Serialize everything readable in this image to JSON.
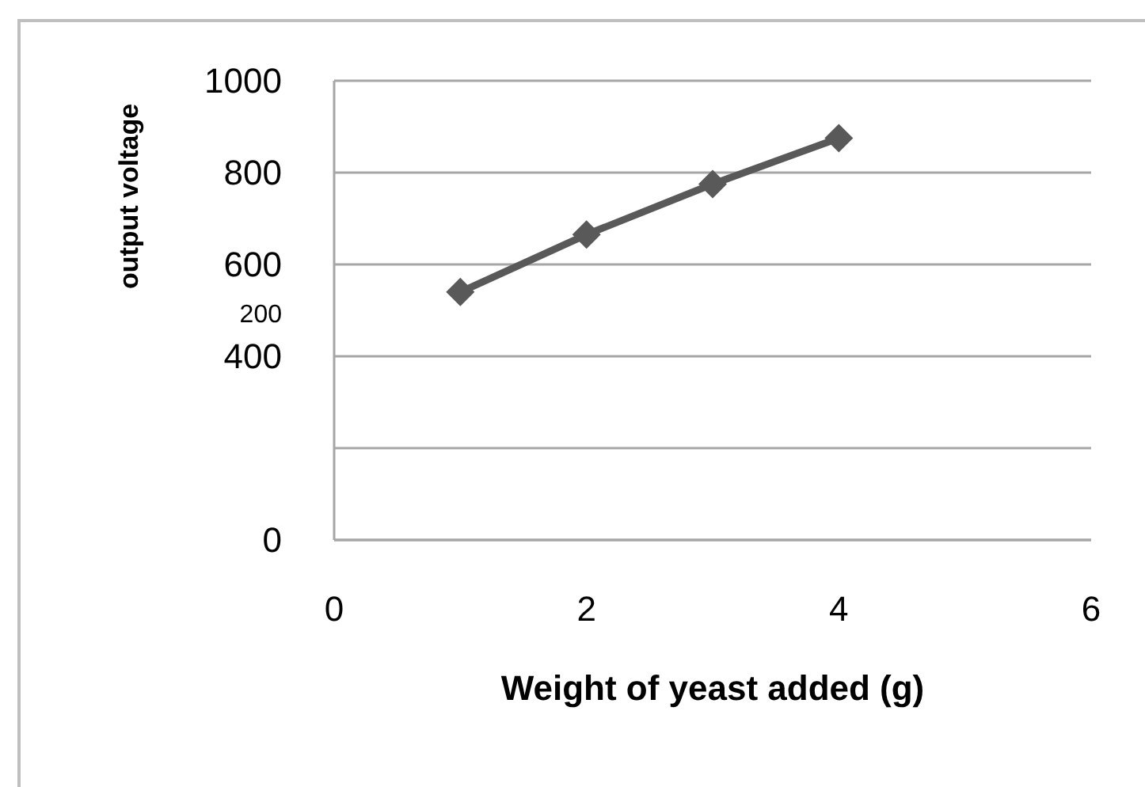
{
  "chart_data": {
    "type": "line",
    "xlabel": "Weight of yeast added (g)",
    "ylabel": "output voltage",
    "x": [
      1,
      2,
      3,
      4
    ],
    "series": [
      {
        "color": "#595959",
        "values": [
          540,
          665,
          775,
          875
        ]
      }
    ],
    "xlim": [
      0,
      6
    ],
    "xticks": [
      0,
      2,
      4,
      6
    ],
    "ylim": [
      0,
      1000
    ],
    "yticks": [
      0,
      {
        "value": 200,
        "label": null
      },
      400,
      600,
      800,
      1000
    ],
    "grid": "y",
    "marker": "diamond",
    "line_style": "solid",
    "annotations": [
      "200"
    ]
  }
}
